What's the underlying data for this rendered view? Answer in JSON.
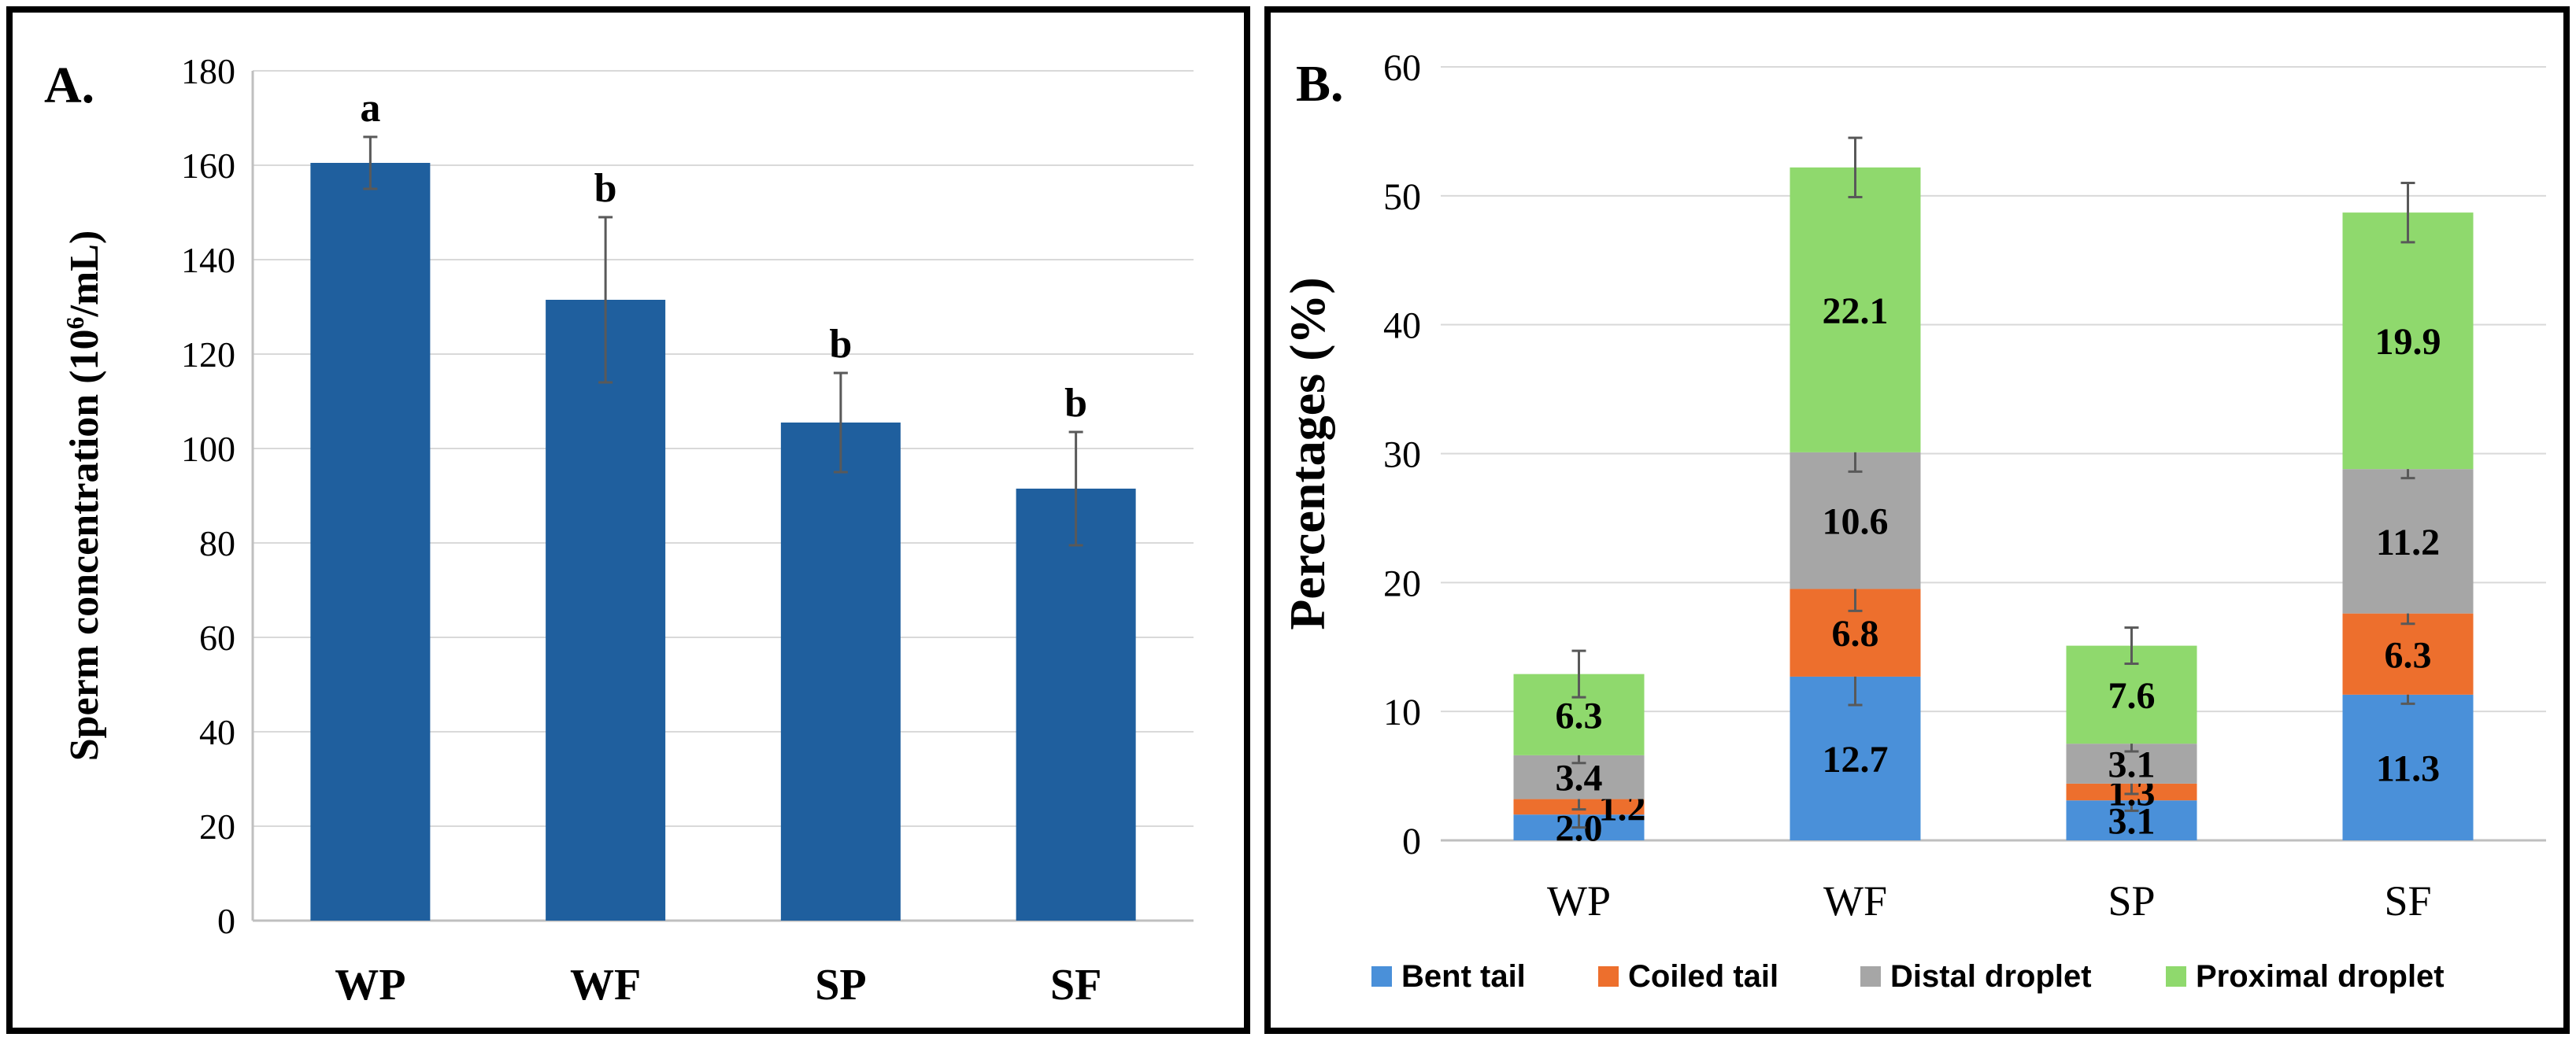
{
  "chart_data": [
    {
      "type": "bar",
      "panel_label": "A.",
      "title": "",
      "xlabel": "",
      "ylabel_prefix": "Sperm concentration (10",
      "ylabel_sup": "6",
      "ylabel_suffix": "/mL)",
      "categories": [
        "WP",
        "WF",
        "SP",
        "SF"
      ],
      "values": [
        160.5,
        131.5,
        105.5,
        91.5
      ],
      "errors": [
        5.5,
        17.5,
        10.5,
        12
      ],
      "significance": [
        "a",
        "b",
        "b",
        "b"
      ],
      "ylim": [
        0,
        180
      ],
      "ytick_labels": [
        "0",
        "20",
        "40",
        "60",
        "80",
        "100",
        "120",
        "140",
        "160",
        "180"
      ],
      "grid": true,
      "color": "#1f5f9e"
    },
    {
      "type": "bar",
      "stacked": true,
      "panel_label": "B.",
      "title": "",
      "xlabel": "",
      "ylabel": "Percentages (%)",
      "categories": [
        "WP",
        "WF",
        "SP",
        "SF"
      ],
      "ylim": [
        0,
        60
      ],
      "ytick_labels": [
        "0",
        "10",
        "20",
        "30",
        "40",
        "50",
        "60"
      ],
      "grid": true,
      "legend_position": "bottom",
      "series": [
        {
          "name": "Bent tail",
          "color": "#4a90d9",
          "label_color": "#000000",
          "values": [
            2.0,
            12.7,
            3.1,
            11.3
          ],
          "labels": [
            "2.0",
            "12.7",
            "3.1",
            "11.3"
          ],
          "errors": [
            1.0,
            2.2,
            0.8,
            0.7
          ]
        },
        {
          "name": "Coiled tail",
          "color": "#ed6f2d",
          "label_color": "#000000",
          "values": [
            1.2,
            6.8,
            1.3,
            6.3
          ],
          "labels": [
            "1.2",
            "6.8",
            "1.3",
            "6.3"
          ],
          "errors": [
            0.8,
            1.7,
            0.8,
            0.8
          ]
        },
        {
          "name": "Distal droplet",
          "color": "#a6a6a6",
          "label_color": "#000000",
          "values": [
            3.4,
            10.6,
            3.1,
            11.2
          ],
          "labels": [
            "3.4",
            "10.6",
            "3.1",
            "11.2"
          ],
          "errors": [
            0.6,
            1.5,
            0.6,
            0.7
          ]
        },
        {
          "name": "Proximal droplet",
          "color": "#8fd96d",
          "label_color": "#000000",
          "values": [
            6.3,
            22.1,
            7.6,
            19.9
          ],
          "labels": [
            "6.3",
            "22.1",
            "7.6",
            "19.9"
          ],
          "errors": [
            1.8,
            2.3,
            1.4,
            2.3
          ]
        }
      ]
    }
  ]
}
